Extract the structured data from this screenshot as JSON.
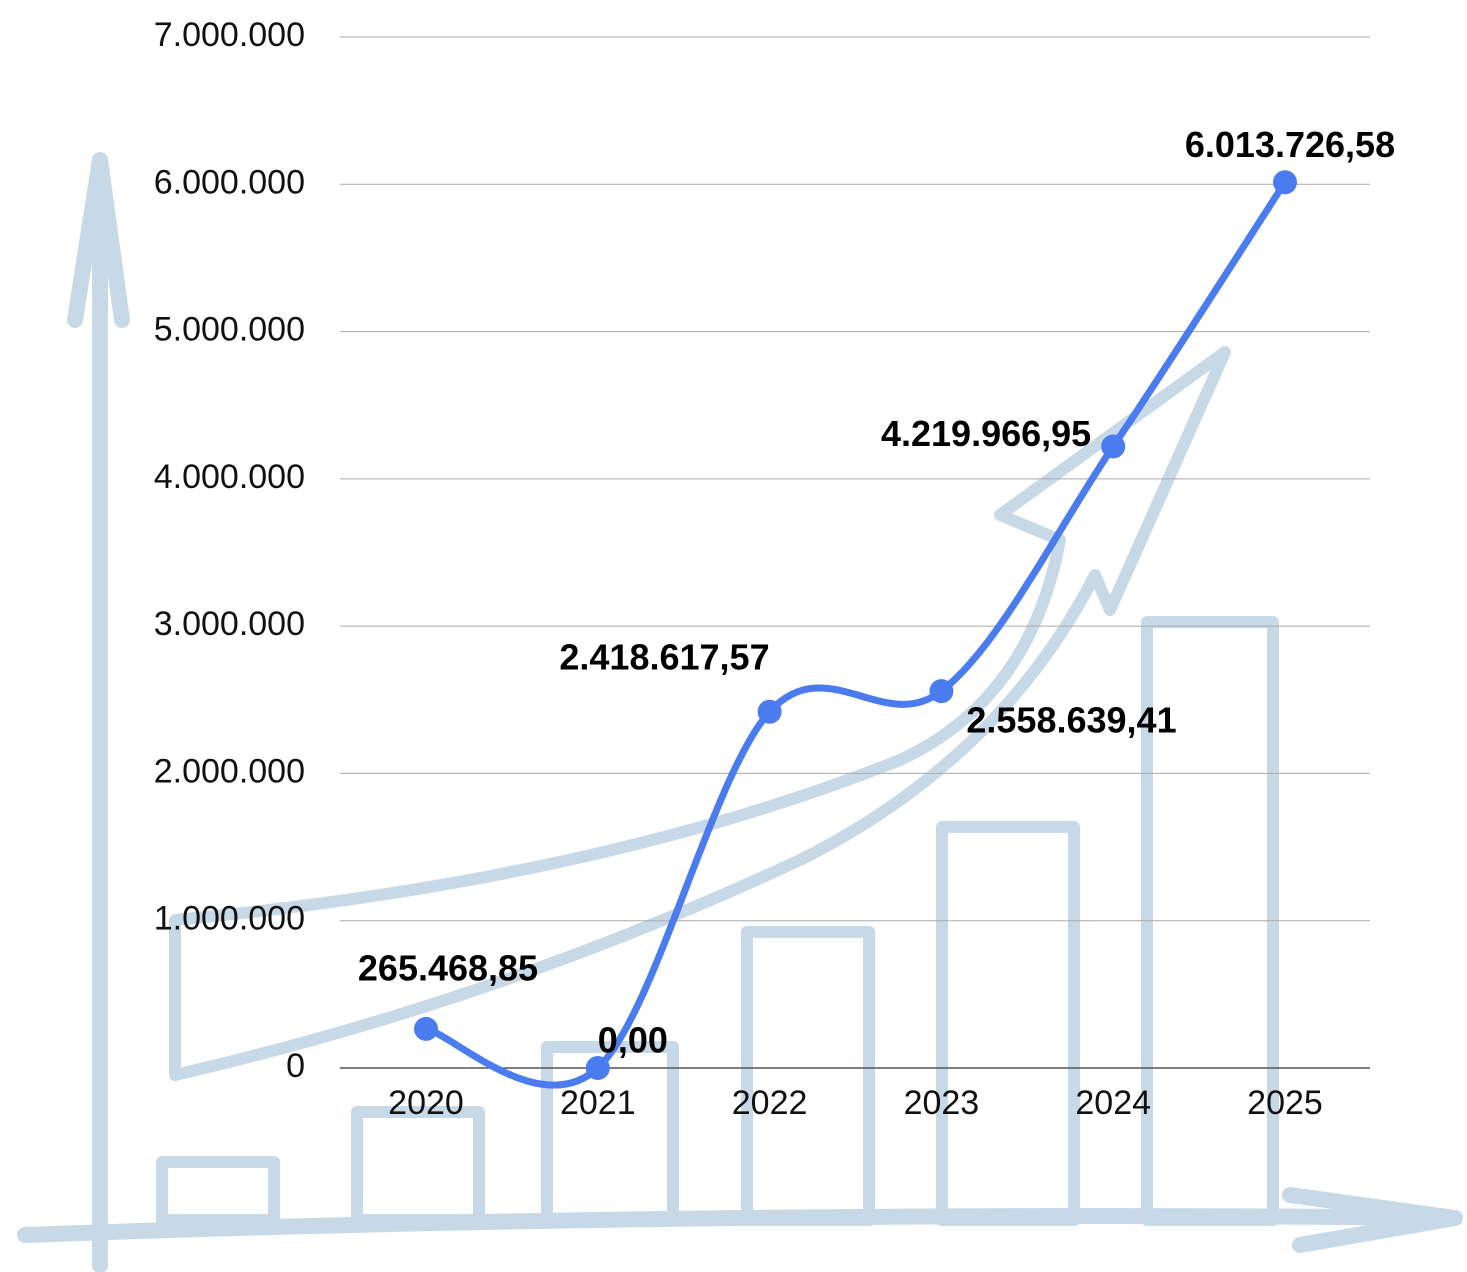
{
  "chart_data": {
    "type": "line",
    "categories": [
      "2020",
      "2021",
      "2022",
      "2023",
      "2024",
      "2025"
    ],
    "values": [
      265468.85,
      0,
      2418617.57,
      2558639.41,
      4219966.95,
      6013726.58
    ],
    "value_labels": [
      "265.468,85",
      "0,00",
      "2.418.617,57",
      "2.558.639,41",
      "4.219.966,95",
      "6.013.726,58"
    ],
    "color": "#4a7cf0",
    "smooth": true,
    "grid": true,
    "ylim": [
      0,
      7000000
    ],
    "yticks": [
      0,
      {
        "value": 1000000,
        "label": "1.000.000"
      },
      {
        "value": 2000000,
        "label": "2.000.000"
      },
      {
        "value": 3000000,
        "label": "3.000.000"
      },
      {
        "value": 4000000,
        "label": "4.000.000"
      },
      {
        "value": 5000000,
        "label": "5.000.000"
      },
      {
        "value": 6000000,
        "label": "6.000.000"
      },
      {
        "value": 7000000,
        "label": "7.000.000"
      }
    ]
  }
}
